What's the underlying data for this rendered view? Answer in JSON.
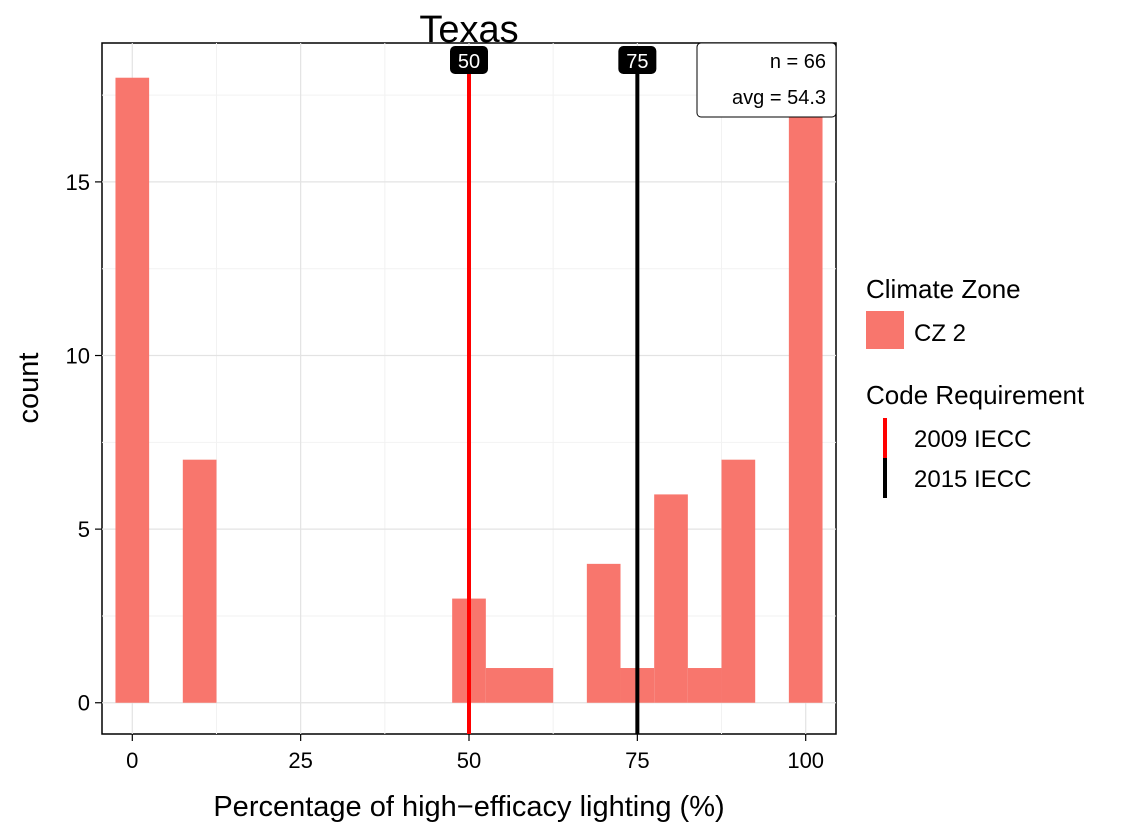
{
  "chart_data": {
    "type": "bar",
    "title": "Texas",
    "xlabel": "Percentage of high−efficacy lighting (%)",
    "ylabel": "count",
    "xlim": [
      -4.5,
      104.5
    ],
    "ylim": [
      -0.9,
      19.0
    ],
    "xticks": [
      "0",
      "25",
      "50",
      "75",
      "100"
    ],
    "yticks": [
      "0",
      "5",
      "10",
      "15"
    ],
    "grid": true,
    "bin_width": 5,
    "bars": [
      {
        "x": 0,
        "count": 18
      },
      {
        "x": 10,
        "count": 7
      },
      {
        "x": 50,
        "count": 3
      },
      {
        "x": 55,
        "count": 1
      },
      {
        "x": 60,
        "count": 1
      },
      {
        "x": 70,
        "count": 4
      },
      {
        "x": 75,
        "count": 1
      },
      {
        "x": 80,
        "count": 6
      },
      {
        "x": 85,
        "count": 1
      },
      {
        "x": 90,
        "count": 7
      },
      {
        "x": 100,
        "count": 17
      }
    ],
    "bar_color": "#f8766d",
    "reference_lines": [
      {
        "x": 50,
        "label": "50",
        "name": "2009 IECC",
        "color": "#ff0000"
      },
      {
        "x": 75,
        "label": "75",
        "name": "2015 IECC",
        "color": "#000000"
      }
    ],
    "annotation": {
      "n": "n = 66",
      "avg": "avg = 54.3"
    },
    "legend": {
      "position": "right",
      "fill_title": "Climate Zone",
      "fill_items": [
        {
          "label": "CZ 2",
          "color": "#f8766d"
        }
      ],
      "line_title": "Code Requirement",
      "line_items": [
        {
          "label": "2009 IECC",
          "color": "#ff0000"
        },
        {
          "label": "2015 IECC",
          "color": "#000000"
        }
      ]
    }
  }
}
